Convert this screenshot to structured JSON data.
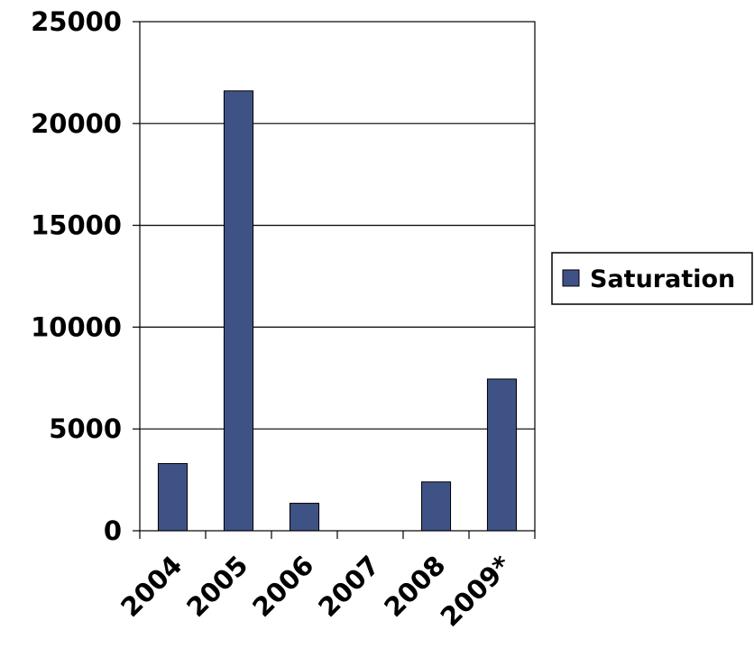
{
  "chart_data": {
    "type": "bar",
    "categories": [
      "2004",
      "2005",
      "2006",
      "2007",
      "2008",
      "2009*"
    ],
    "series": [
      {
        "name": "Saturation",
        "values": [
          3300,
          21600,
          1350,
          0,
          2400,
          7450
        ],
        "color": "#3f5286"
      }
    ],
    "yticks": [
      "0",
      "5000",
      "10000",
      "15000",
      "20000",
      "25000"
    ],
    "ylim": [
      0,
      25000
    ],
    "grid": true,
    "legend_position": "right",
    "bar_color": "#3f5286",
    "grid_color": "#000000"
  }
}
